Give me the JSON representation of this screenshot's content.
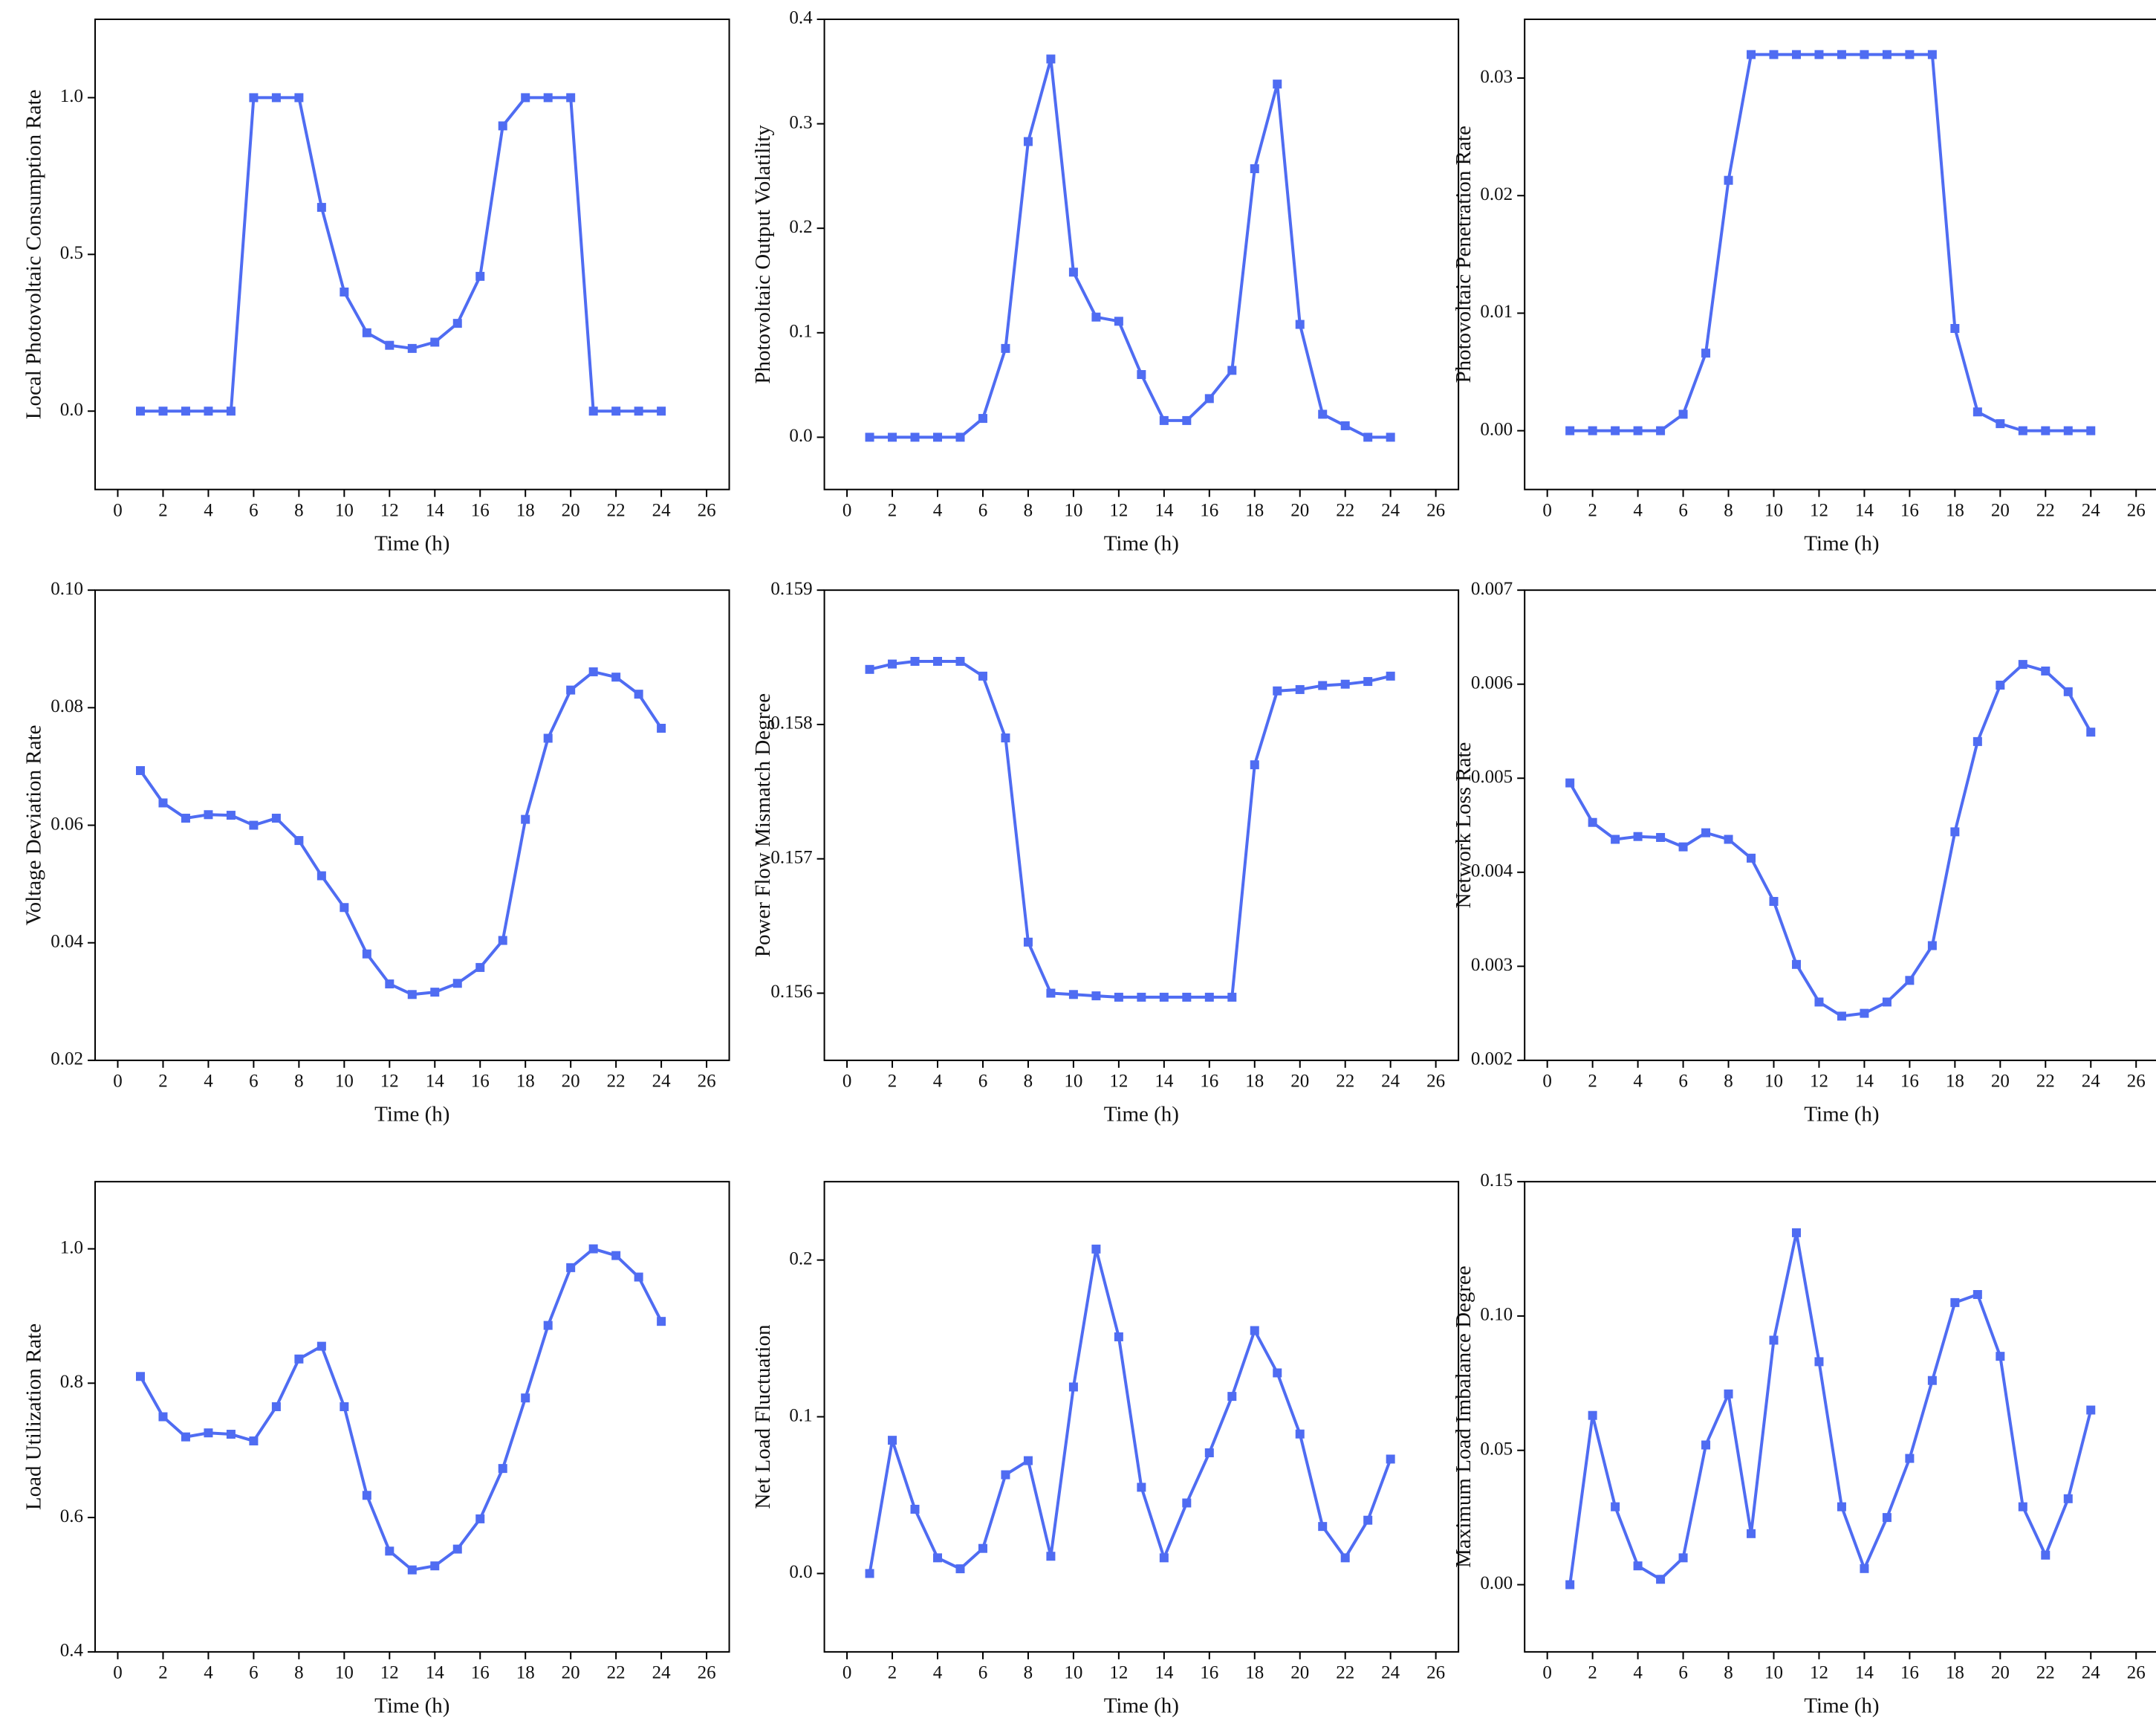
{
  "chart_data": [
    {
      "type": "line",
      "ylabel": "Local Photovoltaic Consumption Rate",
      "xlabel": "Time (h)",
      "color": "#4f6cf2",
      "x": [
        1,
        2,
        3,
        4,
        5,
        6,
        7,
        8,
        9,
        10,
        11,
        12,
        13,
        14,
        15,
        16,
        17,
        18,
        19,
        20,
        21,
        22,
        23,
        24
      ],
      "values": [
        0,
        0,
        0,
        0,
        0,
        1,
        1,
        1,
        0.65,
        0.38,
        0.25,
        0.21,
        0.2,
        0.22,
        0.28,
        0.43,
        0.91,
        1,
        1,
        1,
        0,
        0,
        0,
        0
      ],
      "xlim": [
        -1,
        27
      ],
      "xticks": [
        0,
        2,
        4,
        6,
        8,
        10,
        12,
        14,
        16,
        18,
        20,
        22,
        24,
        26
      ],
      "ylim": [
        -0.25,
        1.25
      ],
      "yticks": [
        {
          "value": 0,
          "label": "0.0"
        },
        0.5,
        {
          "value": 1,
          "label": "1.0"
        }
      ]
    },
    {
      "type": "line",
      "ylabel": "Photovoltaic Output Volatility",
      "xlabel": "Time (h)",
      "color": "#4f6cf2",
      "x": [
        1,
        2,
        3,
        4,
        5,
        6,
        7,
        8,
        9,
        10,
        11,
        12,
        13,
        14,
        15,
        16,
        17,
        18,
        19,
        20,
        21,
        22,
        23,
        24
      ],
      "values": [
        0,
        0,
        0,
        0,
        0,
        0.018,
        0.085,
        0.283,
        0.362,
        0.158,
        0.115,
        0.111,
        0.06,
        0.016,
        0.016,
        0.037,
        0.064,
        0.257,
        0.338,
        0.108,
        0.022,
        0.011,
        0,
        0
      ],
      "xlim": [
        -1,
        27
      ],
      "xticks": [
        0,
        2,
        4,
        6,
        8,
        10,
        12,
        14,
        16,
        18,
        20,
        22,
        24,
        26
      ],
      "ylim": [
        -0.05,
        0.4
      ],
      "yticks": [
        {
          "value": 0,
          "label": "0.0"
        },
        0.1,
        0.2,
        0.3,
        0.4
      ]
    },
    {
      "type": "line",
      "ylabel": "Photovoltaic Penetration Rate",
      "xlabel": "Time (h)",
      "color": "#4f6cf2",
      "x": [
        1,
        2,
        3,
        4,
        5,
        6,
        7,
        8,
        9,
        10,
        11,
        12,
        13,
        14,
        15,
        16,
        17,
        18,
        19,
        20,
        21,
        22,
        23,
        24
      ],
      "values": [
        0,
        0,
        0,
        0,
        0,
        0.0014,
        0.0066,
        0.0213,
        0.032,
        0.032,
        0.032,
        0.032,
        0.032,
        0.032,
        0.032,
        0.032,
        0.032,
        0.0087,
        0.0016,
        0.0006,
        0,
        0,
        0,
        0
      ],
      "xlim": [
        -1,
        27
      ],
      "xticks": [
        0,
        2,
        4,
        6,
        8,
        10,
        12,
        14,
        16,
        18,
        20,
        22,
        24,
        26
      ],
      "ylim": [
        -0.005,
        0.035
      ],
      "yticks": [
        {
          "value": 0,
          "label": "0.00"
        },
        0.01,
        0.02,
        0.03
      ]
    },
    {
      "type": "line",
      "ylabel": "Voltage Deviation Rate",
      "xlabel": "Time (h)",
      "color": "#4f6cf2",
      "x": [
        1,
        2,
        3,
        4,
        5,
        6,
        7,
        8,
        9,
        10,
        11,
        12,
        13,
        14,
        15,
        16,
        17,
        18,
        19,
        20,
        21,
        22,
        23,
        24
      ],
      "values": [
        0.0693,
        0.0638,
        0.0612,
        0.0618,
        0.0617,
        0.06,
        0.0612,
        0.0574,
        0.0514,
        0.046,
        0.0381,
        0.033,
        0.0312,
        0.0316,
        0.0331,
        0.0358,
        0.0404,
        0.061,
        0.0748,
        0.083,
        0.0861,
        0.0852,
        0.0823,
        0.0765
      ],
      "xlim": [
        -1,
        27
      ],
      "xticks": [
        0,
        2,
        4,
        6,
        8,
        10,
        12,
        14,
        16,
        18,
        20,
        22,
        24,
        26
      ],
      "ylim": [
        0.02,
        0.1
      ],
      "yticks": [
        0.02,
        0.04,
        0.06,
        0.08,
        {
          "value": 0.1,
          "label": "0.10"
        }
      ]
    },
    {
      "type": "line",
      "ylabel": "Power Flow Mismatch Degree",
      "xlabel": "Time (h)",
      "color": "#4f6cf2",
      "x": [
        1,
        2,
        3,
        4,
        5,
        6,
        7,
        8,
        9,
        10,
        11,
        12,
        13,
        14,
        15,
        16,
        17,
        18,
        19,
        20,
        21,
        22,
        23,
        24
      ],
      "values": [
        0.15841,
        0.15845,
        0.15847,
        0.15847,
        0.15847,
        0.15836,
        0.1579,
        0.15638,
        0.156,
        0.15599,
        0.15598,
        0.15597,
        0.15597,
        0.15597,
        0.15597,
        0.15597,
        0.15597,
        0.1577,
        0.15825,
        0.15826,
        0.15829,
        0.1583,
        0.15832,
        0.15836
      ],
      "xlim": [
        -1,
        27
      ],
      "xticks": [
        0,
        2,
        4,
        6,
        8,
        10,
        12,
        14,
        16,
        18,
        20,
        22,
        24,
        26
      ],
      "ylim": [
        0.1555,
        0.159
      ],
      "yticks": [
        0.156,
        0.157,
        0.158,
        0.159
      ]
    },
    {
      "type": "line",
      "ylabel": "Network Loss Rate",
      "xlabel": "Time (h)",
      "color": "#4f6cf2",
      "x": [
        1,
        2,
        3,
        4,
        5,
        6,
        7,
        8,
        9,
        10,
        11,
        12,
        13,
        14,
        15,
        16,
        17,
        18,
        19,
        20,
        21,
        22,
        23,
        24
      ],
      "values": [
        0.00495,
        0.00453,
        0.00435,
        0.00438,
        0.00437,
        0.00427,
        0.00442,
        0.00435,
        0.00415,
        0.00369,
        0.00302,
        0.00262,
        0.00247,
        0.0025,
        0.00262,
        0.00285,
        0.00322,
        0.00443,
        0.00539,
        0.00599,
        0.00621,
        0.00614,
        0.00592,
        0.00549
      ],
      "xlim": [
        -1,
        27
      ],
      "xticks": [
        0,
        2,
        4,
        6,
        8,
        10,
        12,
        14,
        16,
        18,
        20,
        22,
        24,
        26
      ],
      "ylim": [
        0.002,
        0.007
      ],
      "yticks": [
        0.002,
        0.003,
        0.004,
        0.005,
        0.006,
        0.007
      ]
    },
    {
      "type": "line",
      "ylabel": "Load Utilization Rate",
      "xlabel": "Time (h)",
      "color": "#4f6cf2",
      "x": [
        1,
        2,
        3,
        4,
        5,
        6,
        7,
        8,
        9,
        10,
        11,
        12,
        13,
        14,
        15,
        16,
        17,
        18,
        19,
        20,
        21,
        22,
        23,
        24
      ],
      "values": [
        0.81,
        0.75,
        0.72,
        0.726,
        0.724,
        0.714,
        0.765,
        0.836,
        0.855,
        0.765,
        0.633,
        0.55,
        0.522,
        0.528,
        0.553,
        0.598,
        0.673,
        0.778,
        0.886,
        0.972,
        1.0,
        0.99,
        0.958,
        0.892
      ],
      "xlim": [
        -1,
        27
      ],
      "xticks": [
        0,
        2,
        4,
        6,
        8,
        10,
        12,
        14,
        16,
        18,
        20,
        22,
        24,
        26
      ],
      "ylim": [
        0.4,
        1.1
      ],
      "yticks": [
        0.4,
        0.6,
        0.8,
        {
          "value": 1,
          "label": "1.0"
        }
      ]
    },
    {
      "type": "line",
      "ylabel": "Net Load Fluctuation",
      "xlabel": "Time (h)",
      "color": "#4f6cf2",
      "x": [
        1,
        2,
        3,
        4,
        5,
        6,
        7,
        8,
        9,
        10,
        11,
        12,
        13,
        14,
        15,
        16,
        17,
        18,
        19,
        20,
        21,
        22,
        23,
        24
      ],
      "values": [
        0,
        0.085,
        0.041,
        0.01,
        0.003,
        0.016,
        0.063,
        0.072,
        0.011,
        0.119,
        0.207,
        0.151,
        0.055,
        0.01,
        0.045,
        0.077,
        0.113,
        0.155,
        0.128,
        0.089,
        0.03,
        0.01,
        0.034,
        0.073
      ],
      "xlim": [
        -1,
        27
      ],
      "xticks": [
        0,
        2,
        4,
        6,
        8,
        10,
        12,
        14,
        16,
        18,
        20,
        22,
        24,
        26
      ],
      "ylim": [
        -0.05,
        0.25
      ],
      "yticks": [
        {
          "value": 0,
          "label": "0.0"
        },
        0.1,
        0.2
      ]
    },
    {
      "type": "line",
      "ylabel": "Maximum Load Imbalance Degree",
      "xlabel": "Time (h)",
      "color": "#4f6cf2",
      "x": [
        1,
        2,
        3,
        4,
        5,
        6,
        7,
        8,
        9,
        10,
        11,
        12,
        13,
        14,
        15,
        16,
        17,
        18,
        19,
        20,
        21,
        22,
        23,
        24
      ],
      "values": [
        0,
        0.063,
        0.029,
        0.007,
        0.002,
        0.01,
        0.052,
        0.071,
        0.019,
        0.091,
        0.131,
        0.083,
        0.029,
        0.006,
        0.025,
        0.047,
        0.076,
        0.105,
        0.108,
        0.085,
        0.029,
        0.011,
        0.032,
        0.065
      ],
      "xlim": [
        -1,
        27
      ],
      "xticks": [
        0,
        2,
        4,
        6,
        8,
        10,
        12,
        14,
        16,
        18,
        20,
        22,
        24,
        26
      ],
      "ylim": [
        -0.025,
        0.15
      ],
      "yticks": [
        {
          "value": 0,
          "label": "0.00"
        },
        0.05,
        {
          "value": 0.1,
          "label": "0.10"
        },
        0.15
      ]
    }
  ]
}
